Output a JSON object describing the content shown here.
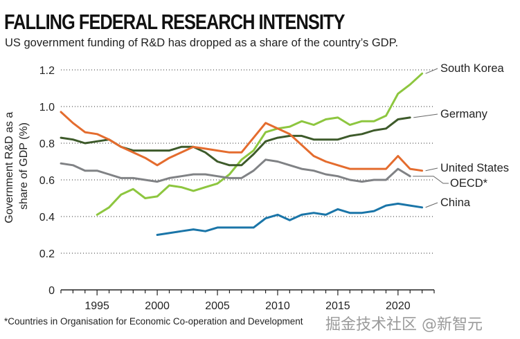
{
  "chart_data": {
    "type": "line",
    "title": "FALLING FEDERAL RESEARCH INTENSITY",
    "subtitle": "US government funding of R&D has dropped as a share of the country’s GDP.",
    "xlabel": "",
    "ylabel": "Government R&D as a share of GDP (%)",
    "ylabel_lines": [
      "Government R&D as a",
      "share of GDP (%)"
    ],
    "xlim": [
      1992,
      2023
    ],
    "ylim": [
      0,
      1.2
    ],
    "xticks": [
      1995,
      2000,
      2005,
      2010,
      2015,
      2020
    ],
    "yticks": [
      0,
      0.2,
      0.4,
      0.6,
      0.8,
      1.0,
      1.2
    ],
    "ytick_labels": [
      "0",
      "0.2",
      "0.4",
      "0.6",
      "0.8",
      "1.0",
      "1.2"
    ],
    "grid": "horizontal-dotted",
    "legend": "right-end-labels",
    "series": [
      {
        "name": "South Korea",
        "color": "#8dc63f",
        "x": [
          1995,
          1996,
          1997,
          1998,
          1999,
          2000,
          2001,
          2002,
          2003,
          2004,
          2005,
          2006,
          2007,
          2008,
          2009,
          2010,
          2011,
          2012,
          2013,
          2014,
          2015,
          2016,
          2017,
          2018,
          2019,
          2020,
          2021,
          2022
        ],
        "y": [
          0.41,
          0.45,
          0.52,
          0.55,
          0.5,
          0.51,
          0.57,
          0.56,
          0.54,
          0.56,
          0.58,
          0.63,
          0.71,
          0.76,
          0.86,
          0.88,
          0.89,
          0.92,
          0.9,
          0.93,
          0.94,
          0.9,
          0.92,
          0.92,
          0.95,
          1.07,
          1.12,
          1.18
        ]
      },
      {
        "name": "Germany",
        "color": "#3d5a2a",
        "x": [
          1992,
          1993,
          1994,
          1995,
          1996,
          1997,
          1998,
          1999,
          2000,
          2001,
          2002,
          2003,
          2004,
          2005,
          2006,
          2007,
          2008,
          2009,
          2010,
          2011,
          2012,
          2013,
          2014,
          2015,
          2016,
          2017,
          2018,
          2019,
          2020,
          2021
        ],
        "y": [
          0.83,
          0.82,
          0.8,
          0.81,
          0.82,
          0.78,
          0.76,
          0.76,
          0.76,
          0.76,
          0.78,
          0.78,
          0.75,
          0.7,
          0.68,
          0.68,
          0.74,
          0.81,
          0.83,
          0.84,
          0.84,
          0.82,
          0.82,
          0.82,
          0.84,
          0.85,
          0.87,
          0.88,
          0.93,
          0.94
        ]
      },
      {
        "name": "United States",
        "color": "#e46c2e",
        "x": [
          1992,
          1993,
          1994,
          1995,
          1996,
          1997,
          1998,
          1999,
          2000,
          2001,
          2002,
          2003,
          2004,
          2005,
          2006,
          2007,
          2008,
          2009,
          2010,
          2011,
          2012,
          2013,
          2014,
          2015,
          2016,
          2017,
          2018,
          2019,
          2020,
          2021,
          2022
        ],
        "y": [
          0.97,
          0.91,
          0.86,
          0.85,
          0.82,
          0.78,
          0.75,
          0.72,
          0.68,
          0.72,
          0.75,
          0.78,
          0.77,
          0.76,
          0.75,
          0.75,
          0.83,
          0.91,
          0.88,
          0.85,
          0.79,
          0.73,
          0.7,
          0.68,
          0.66,
          0.66,
          0.66,
          0.66,
          0.73,
          0.66,
          0.65
        ]
      },
      {
        "name": "OECD*",
        "color": "#808285",
        "x": [
          1992,
          1993,
          1994,
          1995,
          1996,
          1997,
          1998,
          1999,
          2000,
          2001,
          2002,
          2003,
          2004,
          2005,
          2006,
          2007,
          2008,
          2009,
          2010,
          2011,
          2012,
          2013,
          2014,
          2015,
          2016,
          2017,
          2018,
          2019,
          2020,
          2021
        ],
        "y": [
          0.69,
          0.68,
          0.65,
          0.65,
          0.63,
          0.61,
          0.61,
          0.6,
          0.59,
          0.61,
          0.62,
          0.63,
          0.63,
          0.62,
          0.61,
          0.61,
          0.65,
          0.71,
          0.7,
          0.68,
          0.66,
          0.65,
          0.63,
          0.62,
          0.6,
          0.59,
          0.6,
          0.6,
          0.66,
          0.62
        ]
      },
      {
        "name": "China",
        "color": "#1a75a8",
        "x": [
          2000,
          2001,
          2002,
          2003,
          2004,
          2005,
          2006,
          2007,
          2008,
          2009,
          2010,
          2011,
          2012,
          2013,
          2014,
          2015,
          2016,
          2017,
          2018,
          2019,
          2020,
          2021,
          2022
        ],
        "y": [
          0.3,
          0.31,
          0.32,
          0.33,
          0.32,
          0.34,
          0.34,
          0.34,
          0.34,
          0.39,
          0.41,
          0.38,
          0.41,
          0.42,
          0.41,
          0.44,
          0.42,
          0.42,
          0.43,
          0.46,
          0.47,
          0.46,
          0.45
        ]
      }
    ]
  },
  "footnote": "*Countries in Organisation for Economic Co-operation and Development",
  "watermark": "掘金技术社区 @新智元"
}
